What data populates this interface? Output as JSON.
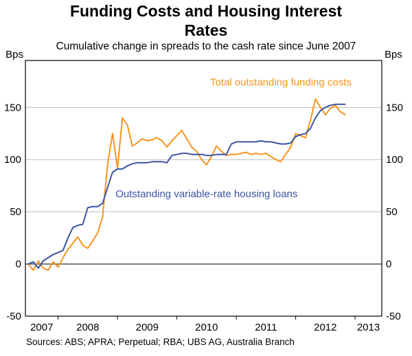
{
  "header": {
    "title_line1": "Funding Costs and Housing Interest",
    "title_line2": "Rates",
    "subtitle": "Cumulative change in spreads to the cash rate since June 2007"
  },
  "axes": {
    "unit_left": "Bps",
    "unit_right": "Bps"
  },
  "footer": {
    "source": "Sources: ABS; APRA; Perpetual; RBA; UBS AG, Australia Branch"
  },
  "chart_data": {
    "type": "line",
    "title": "Funding Costs and Housing Interest Rates",
    "subtitle": "Cumulative change in spreads to the cash rate since June 2007",
    "ylabel": "Bps",
    "ylim": [
      -50,
      195
    ],
    "yticks": [
      -50,
      0,
      50,
      100,
      150
    ],
    "xlim": [
      2007.45,
      2013.45
    ],
    "xtick_labels": [
      "2007",
      "2008",
      "2009",
      "2010",
      "2011",
      "2012",
      "2013"
    ],
    "grid": true,
    "zero_line": true,
    "legend_position": "in-plot-annotations",
    "series": [
      {
        "name": "Total outstanding funding costs",
        "color": "#f7941d",
        "label": {
          "x": 2011.75,
          "y": 171
        },
        "x": [
          2007.5,
          2007.583,
          2007.667,
          2007.75,
          2007.833,
          2007.917,
          2008.0,
          2008.083,
          2008.167,
          2008.25,
          2008.333,
          2008.417,
          2008.5,
          2008.583,
          2008.667,
          2008.75,
          2008.833,
          2008.917,
          2009.0,
          2009.083,
          2009.167,
          2009.25,
          2009.333,
          2009.417,
          2009.5,
          2009.583,
          2009.667,
          2009.75,
          2009.833,
          2009.917,
          2010.0,
          2010.083,
          2010.167,
          2010.25,
          2010.333,
          2010.417,
          2010.5,
          2010.583,
          2010.667,
          2010.75,
          2010.833,
          2010.917,
          2011.0,
          2011.083,
          2011.167,
          2011.25,
          2011.333,
          2011.417,
          2011.5,
          2011.583,
          2011.667,
          2011.75,
          2011.833,
          2011.917,
          2012.0,
          2012.083,
          2012.167,
          2012.25,
          2012.333,
          2012.417,
          2012.5,
          2012.583,
          2012.667,
          2012.75,
          2012.833
        ],
        "y": [
          0,
          -6,
          3,
          -4,
          -6,
          2,
          -3,
          6,
          14,
          20,
          26,
          18,
          15,
          22,
          30,
          45,
          95,
          125,
          92,
          140,
          133,
          113,
          116,
          120,
          118,
          119,
          121,
          118,
          112,
          118,
          123,
          128,
          120,
          112,
          108,
          100,
          95,
          103,
          113,
          108,
          104,
          105,
          105,
          106,
          107,
          105,
          106,
          105,
          106,
          103,
          100,
          98,
          105,
          112,
          125,
          123,
          121,
          138,
          158,
          150,
          143,
          149,
          152,
          146,
          143
        ]
      },
      {
        "name": "Outstanding variable-rate housing loans",
        "color": "#3a53a4",
        "label": {
          "x": 2010.5,
          "y": 64
        },
        "x": [
          2007.5,
          2007.583,
          2007.667,
          2007.75,
          2007.833,
          2007.917,
          2008.0,
          2008.083,
          2008.167,
          2008.25,
          2008.333,
          2008.417,
          2008.5,
          2008.583,
          2008.667,
          2008.75,
          2008.833,
          2008.917,
          2009.0,
          2009.083,
          2009.167,
          2009.25,
          2009.333,
          2009.417,
          2009.5,
          2009.583,
          2009.667,
          2009.75,
          2009.833,
          2009.917,
          2010.0,
          2010.083,
          2010.167,
          2010.25,
          2010.333,
          2010.417,
          2010.5,
          2010.583,
          2010.667,
          2010.75,
          2010.833,
          2010.917,
          2011.0,
          2011.083,
          2011.167,
          2011.25,
          2011.333,
          2011.417,
          2011.5,
          2011.583,
          2011.667,
          2011.75,
          2011.833,
          2011.917,
          2012.0,
          2012.083,
          2012.167,
          2012.25,
          2012.333,
          2012.417,
          2012.5,
          2012.583,
          2012.667,
          2012.75,
          2012.833
        ],
        "y": [
          0,
          2,
          -4,
          3,
          6,
          9,
          11,
          13,
          25,
          35,
          37,
          38,
          54,
          55,
          55,
          58,
          73,
          88,
          91,
          91,
          94,
          96,
          97,
          97,
          97,
          98,
          98,
          98,
          97,
          104,
          105,
          106,
          106,
          105,
          105,
          105,
          104,
          104,
          105,
          105,
          105,
          115,
          117,
          117,
          117,
          117,
          117,
          118,
          117,
          117,
          116,
          115,
          115,
          116,
          122,
          124,
          125,
          130,
          140,
          147,
          150,
          152,
          153,
          153,
          153
        ]
      }
    ]
  }
}
